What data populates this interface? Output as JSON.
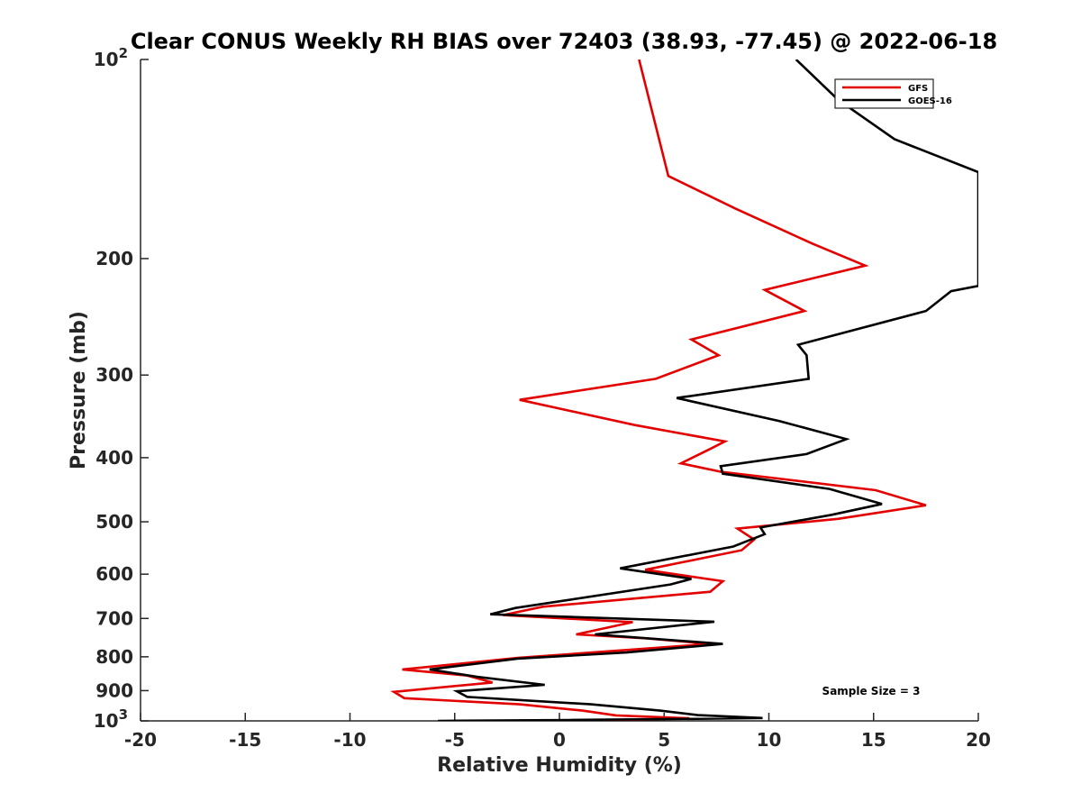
{
  "chart_data": {
    "type": "line",
    "title": "Clear CONUS Weekly RH BIAS over 72403 (38.93, -77.45) @ 2022-06-18",
    "xlabel": "Relative Humidity (%)",
    "ylabel": "Pressure (mb)",
    "xlim": [
      -20,
      20
    ],
    "ylim": [
      100,
      1000
    ],
    "y_scale": "log",
    "y_reversed": true,
    "grid": false,
    "legend_position": "top-right",
    "x_ticks": [
      "-20",
      "-15",
      "-10",
      "-5",
      "0",
      "5",
      "10",
      "15",
      "20"
    ],
    "y_ticks": [
      {
        "base": "10",
        "exp": "2"
      },
      {
        "base": "200",
        "exp": ""
      },
      {
        "base": "300",
        "exp": ""
      },
      {
        "base": "400",
        "exp": ""
      },
      {
        "base": "500",
        "exp": ""
      },
      {
        "base": "600",
        "exp": ""
      },
      {
        "base": "700",
        "exp": ""
      },
      {
        "base": "800",
        "exp": ""
      },
      {
        "base": "900",
        "exp": ""
      },
      {
        "base": "10",
        "exp": "3"
      }
    ],
    "annotation": "Sample Size = 3",
    "series": [
      {
        "name": "GFS",
        "color": "#e30000",
        "points": [
          [
            3.8,
            100
          ],
          [
            5.2,
            150
          ],
          [
            8.4,
            168
          ],
          [
            12.1,
            190
          ],
          [
            14.6,
            205
          ],
          [
            9.8,
            223
          ],
          [
            11.7,
            240
          ],
          [
            6.3,
            265
          ],
          [
            7.6,
            280
          ],
          [
            4.6,
            304
          ],
          [
            -1.9,
            327
          ],
          [
            3.6,
            357
          ],
          [
            7.9,
            378
          ],
          [
            7.2,
            388
          ],
          [
            5.8,
            408
          ],
          [
            7.7,
            420
          ],
          [
            15.1,
            448
          ],
          [
            17.5,
            472
          ],
          [
            13.3,
            495
          ],
          [
            8.5,
            512
          ],
          [
            9.3,
            532
          ],
          [
            8.7,
            552
          ],
          [
            4.1,
            591
          ],
          [
            7.8,
            615
          ],
          [
            7.2,
            638
          ],
          [
            -0.8,
            672
          ],
          [
            -2.7,
            692
          ],
          [
            3.5,
            709
          ],
          [
            0.8,
            740
          ],
          [
            4.1,
            750
          ],
          [
            7.2,
            765
          ],
          [
            -2.0,
            803
          ],
          [
            -7.5,
            836
          ],
          [
            -4.4,
            854
          ],
          [
            -3.2,
            875
          ],
          [
            -7.9,
            904
          ],
          [
            -7.4,
            924
          ],
          [
            -1.9,
            944
          ],
          [
            1.1,
            965
          ],
          [
            2.7,
            981
          ],
          [
            6.2,
            991
          ],
          [
            4.0,
            995
          ],
          [
            0.5,
            998
          ],
          [
            -3.4,
            1000
          ]
        ]
      },
      {
        "name": "GOES-16",
        "color": "#000000",
        "points": [
          [
            11.3,
            100
          ],
          [
            13.3,
            115
          ],
          [
            16.0,
            132
          ],
          [
            20.0,
            148
          ],
          [
            20.0,
            220
          ],
          [
            18.7,
            224
          ],
          [
            17.5,
            240
          ],
          [
            11.4,
            270
          ],
          [
            11.8,
            280
          ],
          [
            11.9,
            304
          ],
          [
            5.6,
            325
          ],
          [
            10.5,
            352
          ],
          [
            13.7,
            375
          ],
          [
            11.8,
            395
          ],
          [
            7.7,
            412
          ],
          [
            7.8,
            423
          ],
          [
            12.9,
            446
          ],
          [
            15.4,
            470
          ],
          [
            13.0,
            488
          ],
          [
            9.6,
            510
          ],
          [
            9.8,
            522
          ],
          [
            8.3,
            545
          ],
          [
            2.9,
            588
          ],
          [
            6.3,
            610
          ],
          [
            5.3,
            622
          ],
          [
            -2.1,
            675
          ],
          [
            -3.3,
            690
          ],
          [
            7.4,
            708
          ],
          [
            1.7,
            740
          ],
          [
            7.8,
            765
          ],
          [
            3.2,
            788
          ],
          [
            -2.0,
            805
          ],
          [
            -6.2,
            836
          ],
          [
            -3.9,
            858
          ],
          [
            -0.7,
            882
          ],
          [
            -4.9,
            902
          ],
          [
            -4.4,
            920
          ],
          [
            1.5,
            944
          ],
          [
            4.8,
            965
          ],
          [
            6.6,
            980
          ],
          [
            9.7,
            990
          ],
          [
            4.8,
            994
          ],
          [
            0.5,
            997
          ],
          [
            -5.8,
            1000
          ]
        ]
      }
    ]
  }
}
